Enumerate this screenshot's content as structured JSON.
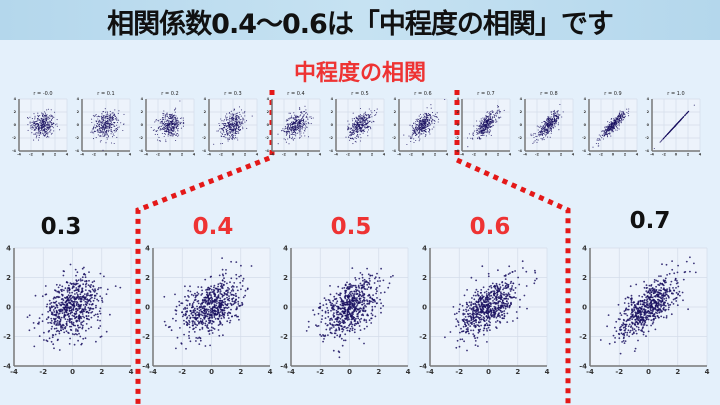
{
  "title": "相関係数0.4〜0.6は「中程度の相関」です",
  "subtitle": "中程度の相関",
  "colors": {
    "highlight": "#ee3333",
    "normal": "#111111",
    "points": "#1a1060",
    "dotted_line": "#e41818"
  },
  "chart_data": [
    {
      "type": "scatter",
      "group": "top-row",
      "axis_range": [
        -4,
        4
      ],
      "ticks": [
        -4,
        -2,
        0,
        2,
        4
      ],
      "grid": true,
      "panels": [
        {
          "title": "r = -0.0",
          "r": 0.0
        },
        {
          "title": "r = 0.1",
          "r": 0.1
        },
        {
          "title": "r = 0.2",
          "r": 0.2
        },
        {
          "title": "r = 0.3",
          "r": 0.3
        },
        {
          "title": "r = 0.4",
          "r": 0.4
        },
        {
          "title": "r = 0.5",
          "r": 0.5
        },
        {
          "title": "r = 0.6",
          "r": 0.6
        },
        {
          "title": "r = 0.7",
          "r": 0.7
        },
        {
          "title": "r = 0.8",
          "r": 0.8
        },
        {
          "title": "r = 0.9",
          "r": 0.9
        },
        {
          "title": "r = 1.0",
          "r": 1.0
        }
      ]
    },
    {
      "type": "scatter",
      "group": "enlarged",
      "axis_range": [
        -4,
        4
      ],
      "ticks": [
        -4,
        -2,
        0,
        2,
        4
      ],
      "grid": true,
      "panels": [
        {
          "label": "0.3",
          "r": 0.3,
          "highlight": false
        },
        {
          "label": "0.4",
          "r": 0.4,
          "highlight": true
        },
        {
          "label": "0.5",
          "r": 0.5,
          "highlight": true
        },
        {
          "label": "0.6",
          "r": 0.6,
          "highlight": true
        },
        {
          "label": "0.7",
          "r": 0.7,
          "highlight": false
        }
      ]
    }
  ]
}
